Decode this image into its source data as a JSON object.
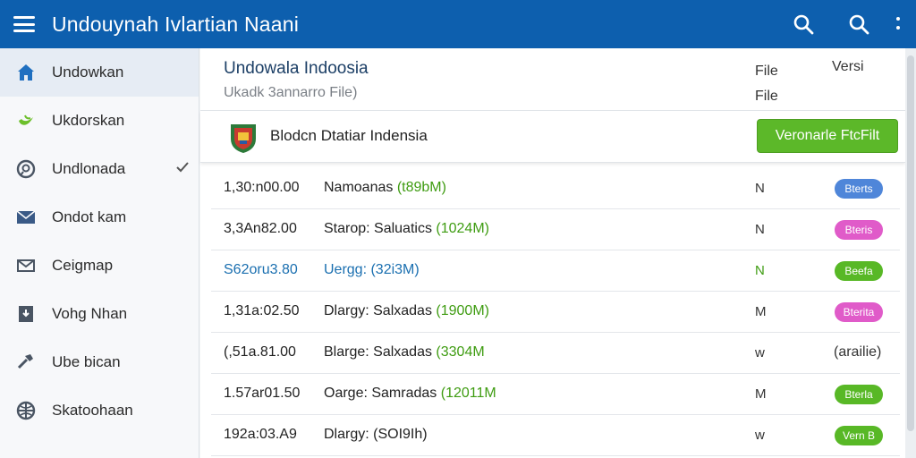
{
  "app": {
    "title": "Undouynah Ivlartian Naani"
  },
  "sidebar": {
    "items": [
      {
        "label": "Undowkan",
        "icon": "home-icon",
        "active": true
      },
      {
        "label": "Ukdorskan",
        "icon": "leaf-icon"
      },
      {
        "label": "Undlonada",
        "icon": "search-circle-icon",
        "checked": true
      },
      {
        "label": "Ondot kam",
        "icon": "mail-icon"
      },
      {
        "label": "Ceigmap",
        "icon": "envelope-icon"
      },
      {
        "label": "Vohg Nhan",
        "icon": "download-box-icon"
      },
      {
        "label": "Ube bican",
        "icon": "hammer-icon"
      },
      {
        "label": "Skatoohaan",
        "icon": "globe-icon"
      }
    ]
  },
  "page": {
    "title": "Undowala Indoosia",
    "subtitle": "Ukadk 3annarro File)",
    "col_file": "File File",
    "col_versi": "Versi"
  },
  "product": {
    "name": "Blodcn Dtatiar Indensia",
    "download_label": "Veronarle FtcFilt"
  },
  "rows": [
    {
      "version": "1,30:n00.00",
      "name": "Namoanas",
      "size": "(t89bM)",
      "flag": "N",
      "badge": "Bterts",
      "badge_color": "#4f86d9"
    },
    {
      "version": "3,3An82.00",
      "name": "Starop: Saluatics",
      "size": "(1024M)",
      "flag": "N",
      "badge": "Bteris",
      "badge_color": "#e05bc9"
    },
    {
      "version": "S62oru3.80",
      "name": "Uergg: (32i3M)",
      "size": "",
      "flag": "N",
      "badge": "Beefa",
      "badge_color": "#58b826",
      "highlight": true
    },
    {
      "version": "1,31a:02.50",
      "name": "Dlargy: Salxadas",
      "size": "(1900M)",
      "flag": "M",
      "badge": "Bterita",
      "badge_color": "#e05bc9"
    },
    {
      "version": "(,51a.81.00",
      "name": "Blarge: Salxadas",
      "size": "(3304M",
      "flag": "w",
      "avail": "(arailie)"
    },
    {
      "version": "1.57ar01.50",
      "name": "Oarge: Samradas",
      "size": "(12011M",
      "flag": "M",
      "badge": "Bterla",
      "badge_color": "#58b826"
    },
    {
      "version": "192a:03.A9",
      "name": "Dlargy: (SOI9Ih)",
      "size": "",
      "flag": "w",
      "badge": "Vern B",
      "badge_color": "#58b826"
    }
  ],
  "colors": {
    "appbar": "#0d5fae",
    "accent_green": "#5cb829",
    "title_blue": "#1c3f66"
  }
}
